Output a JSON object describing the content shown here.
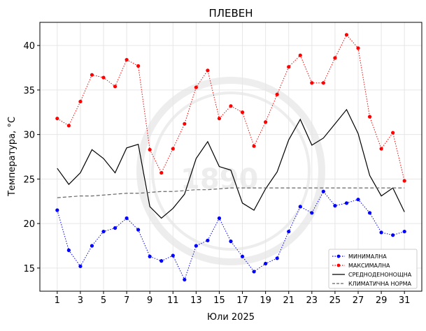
{
  "chart_data": {
    "type": "line",
    "title": "ПЛЕВЕН",
    "xlabel": "Юли  2025",
    "ylabel": "Температура,  °C",
    "xlim": [
      -0.5,
      32.5
    ],
    "ylim": [
      12.4,
      42.6
    ],
    "xticks": [
      1,
      3,
      5,
      7,
      9,
      11,
      13,
      15,
      17,
      19,
      21,
      23,
      25,
      27,
      29,
      31
    ],
    "yticks": [
      15,
      20,
      25,
      30,
      35,
      40
    ],
    "grid": true,
    "legend_position": "bottom-right",
    "x": [
      1,
      2,
      3,
      4,
      5,
      6,
      7,
      8,
      9,
      10,
      11,
      12,
      13,
      14,
      15,
      16,
      17,
      18,
      19,
      20,
      21,
      22,
      23,
      24,
      25,
      26,
      27,
      28,
      29,
      30,
      31
    ],
    "series": [
      {
        "name": "МИНИМАЛНА",
        "color": "#0000ff",
        "style": "dotted-marker",
        "values": [
          21.5,
          17.0,
          15.2,
          17.5,
          19.1,
          19.5,
          20.6,
          19.3,
          16.3,
          15.8,
          16.4,
          13.7,
          17.5,
          18.1,
          20.6,
          18.0,
          16.3,
          14.6,
          15.5,
          16.1,
          19.1,
          21.9,
          21.2,
          23.6,
          22.0,
          22.3,
          22.7,
          21.2,
          19.0,
          18.7,
          19.1
        ]
      },
      {
        "name": "МАКСИМАЛНА",
        "color": "#ff0000",
        "style": "dotted-marker",
        "values": [
          31.8,
          31.0,
          33.7,
          36.7,
          36.4,
          35.4,
          38.4,
          37.7,
          28.3,
          25.7,
          28.4,
          31.2,
          35.3,
          37.2,
          31.8,
          33.2,
          32.5,
          28.7,
          31.4,
          34.5,
          37.6,
          38.9,
          35.8,
          35.8,
          38.6,
          41.2,
          39.7,
          32.0,
          28.4,
          30.2,
          24.8
        ]
      },
      {
        "name": "СРЕДНОДЕНОНОЩНА",
        "color": "#000000",
        "style": "solid",
        "values": [
          26.2,
          24.4,
          25.7,
          28.3,
          27.3,
          25.7,
          28.5,
          28.9,
          21.9,
          20.6,
          21.7,
          23.3,
          27.3,
          29.2,
          26.4,
          26.0,
          22.3,
          21.5,
          23.9,
          25.8,
          29.4,
          31.7,
          28.8,
          29.6,
          31.2,
          32.8,
          30.1,
          25.4,
          23.1,
          24.0,
          21.3
        ]
      },
      {
        "name": "КЛИМАТИЧНА НОРМА",
        "color": "#666666",
        "style": "dashed",
        "values": [
          22.9,
          23.0,
          23.1,
          23.1,
          23.2,
          23.3,
          23.4,
          23.4,
          23.5,
          23.6,
          23.6,
          23.7,
          23.8,
          23.8,
          23.9,
          24.0,
          24.0,
          24.0,
          24.0,
          24.0,
          24.0,
          24.0,
          24.0,
          24.0,
          24.0,
          24.0,
          24.0,
          24.0,
          24.0,
          24.0,
          24.0
        ]
      }
    ]
  }
}
